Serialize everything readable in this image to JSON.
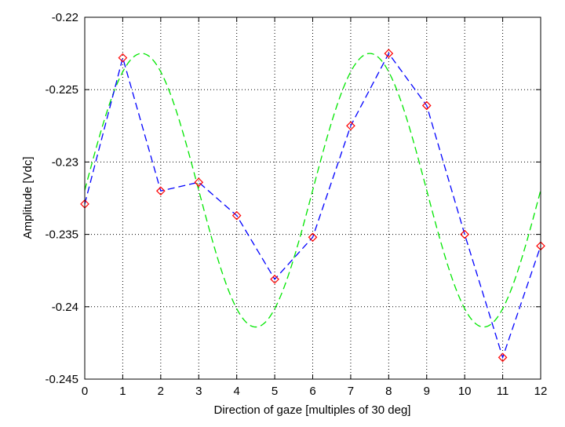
{
  "chart_data": {
    "type": "line",
    "title": "",
    "xlabel": "Direction of gaze [multiples of 30 deg]",
    "ylabel": "Amplitude [Vdc]",
    "xlim": [
      0,
      12
    ],
    "ylim": [
      -0.245,
      -0.22
    ],
    "xticks": [
      0,
      1,
      2,
      3,
      4,
      5,
      6,
      7,
      8,
      9,
      10,
      11,
      12
    ],
    "xtick_labels": [
      "0",
      "1",
      "2",
      "3",
      "4",
      "5",
      "6",
      "7",
      "8",
      "9",
      "10",
      "11",
      "12"
    ],
    "yticks": [
      -0.245,
      -0.24,
      -0.235,
      -0.23,
      -0.225,
      -0.22
    ],
    "ytick_labels": [
      "-0.245",
      "-0.24",
      "-0.235",
      "-0.23",
      "-0.225",
      "-0.22"
    ],
    "grid": true,
    "legend": "none",
    "series": [
      {
        "style": "blue dashed line with red diamond markers",
        "line_color": "#0000ff",
        "marker_color": "#ff0000",
        "x": [
          0,
          1,
          2,
          3,
          4,
          5,
          6,
          7,
          8,
          9,
          10,
          11,
          12
        ],
        "y": [
          -0.2329,
          -0.2228,
          -0.232,
          -0.2314,
          -0.2337,
          -0.2381,
          -0.2352,
          -0.2275,
          -0.2225,
          -0.2261,
          -0.235,
          -0.2435,
          -0.2358
        ]
      },
      {
        "style": "green dashed sinusoidal fit",
        "line_color": "#00e600",
        "fit": {
          "offset": -0.23195,
          "amplitude": 0.00945,
          "period": 6,
          "peak_x": 1.5
        },
        "x_range": [
          0,
          12
        ]
      }
    ]
  }
}
